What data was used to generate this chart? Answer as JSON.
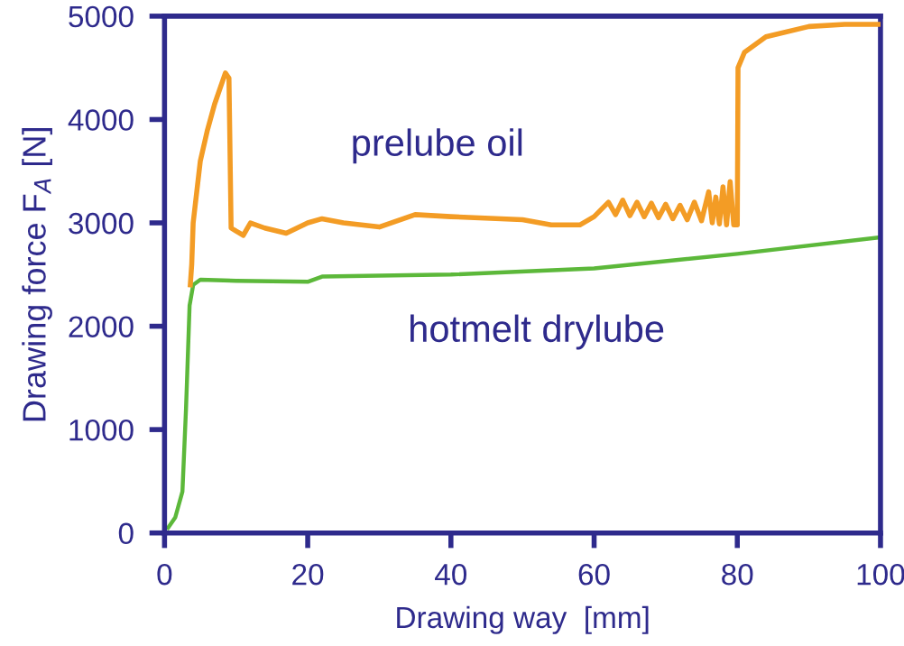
{
  "chart_data": {
    "type": "line",
    "xlabel": "Drawing way  [mm]",
    "ylabel": "Drawing force F$_{A}$ [N]",
    "xlim": [
      0,
      100
    ],
    "ylim": [
      0,
      5000
    ],
    "xticks": [
      0,
      20,
      40,
      60,
      80,
      100
    ],
    "yticks": [
      0,
      1000,
      2000,
      3000,
      4000,
      5000
    ],
    "grid": false,
    "legend": false,
    "marker": "none",
    "line_style": "solid",
    "series": [
      {
        "name": "prelube oil",
        "color": "#f39c25",
        "x": [
          3.6,
          3.8,
          4,
          5,
          6,
          7,
          8.5,
          9,
          9.3,
          10,
          11,
          12,
          14,
          17,
          20,
          22,
          25,
          30,
          35,
          40,
          50,
          54,
          58,
          60,
          62,
          63,
          64,
          65,
          66,
          67,
          68,
          69,
          70,
          71,
          72,
          73,
          74,
          75,
          76,
          76.5,
          77,
          77.5,
          78,
          78.5,
          79,
          79.5,
          80,
          80.1,
          81,
          84,
          90,
          95,
          100
        ],
        "values": [
          2400,
          2600,
          3000,
          3600,
          3900,
          4150,
          4450,
          4400,
          2950,
          2920,
          2880,
          3000,
          2950,
          2900,
          3000,
          3040,
          3000,
          2960,
          3080,
          3060,
          3030,
          2980,
          2980,
          3060,
          3200,
          3080,
          3220,
          3070,
          3200,
          3060,
          3190,
          3050,
          3180,
          3040,
          3170,
          3030,
          3200,
          3020,
          3300,
          3000,
          3250,
          2990,
          3350,
          2980,
          3400,
          2980,
          2980,
          4500,
          4650,
          4800,
          4900,
          4920,
          4920
        ]
      },
      {
        "name": "hotmelt drylube",
        "color": "#5cb83a",
        "x": [
          0.5,
          1.5,
          2.5,
          3,
          3.5,
          4,
          5,
          10,
          20,
          22,
          40,
          60,
          80,
          100
        ],
        "values": [
          50,
          150,
          400,
          1200,
          2200,
          2400,
          2450,
          2440,
          2430,
          2480,
          2500,
          2560,
          2700,
          2860
        ]
      }
    ]
  }
}
